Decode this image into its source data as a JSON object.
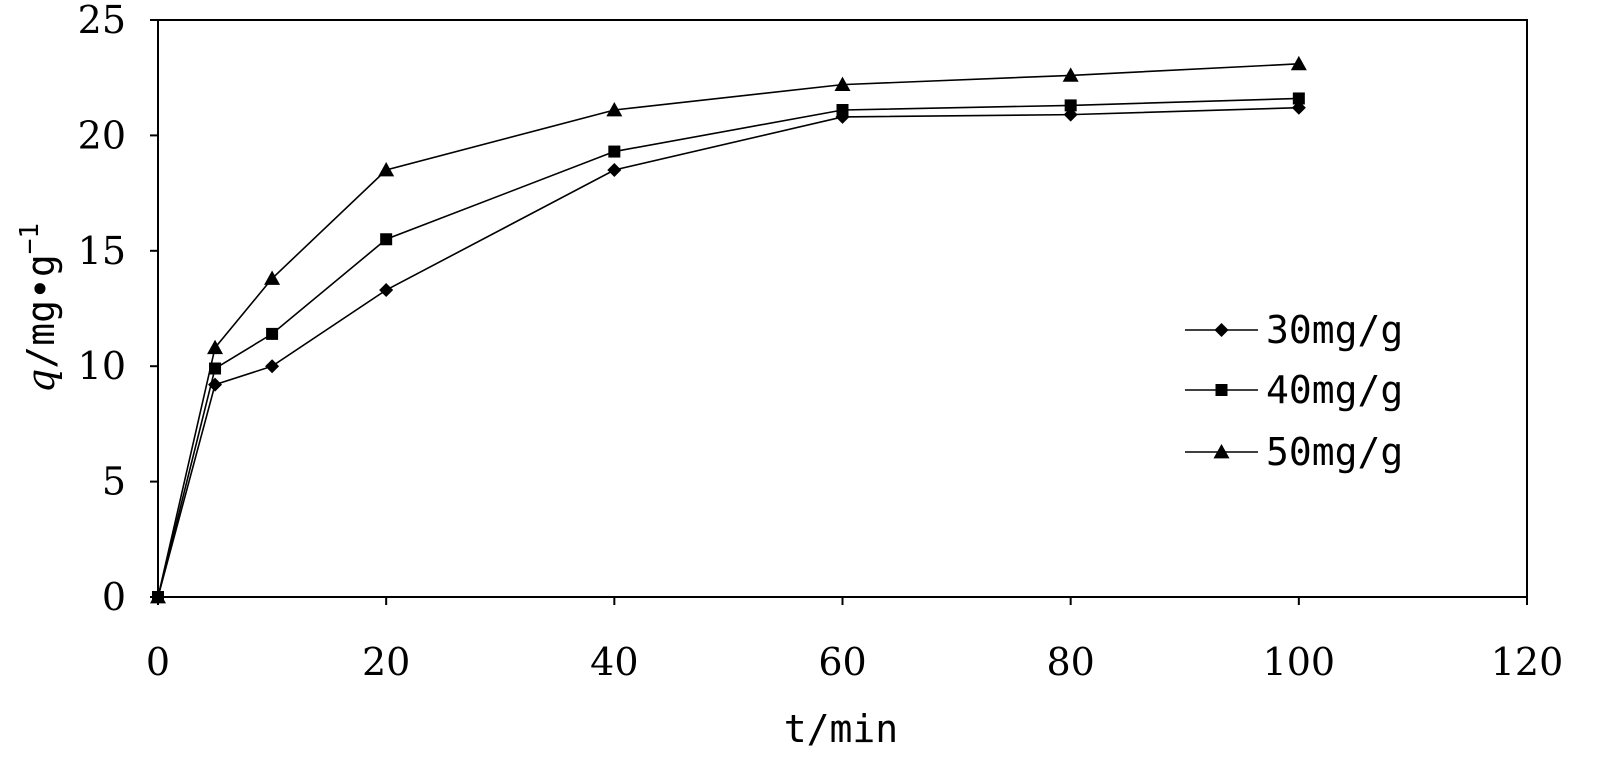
{
  "chart_data": {
    "type": "line",
    "xlabel": "t/min",
    "ylabel_parts": {
      "italic_symbol": "q",
      "unit": "/mg•g",
      "superscript": "−1"
    },
    "xlim": [
      0,
      120
    ],
    "ylim": [
      0,
      25
    ],
    "x_ticks": [
      "0",
      "20",
      "40",
      "60",
      "80",
      "100",
      "120"
    ],
    "y_ticks": [
      "0",
      "5",
      "10",
      "15",
      "20",
      "25"
    ],
    "grid": false,
    "legend_position": "right",
    "x": [
      0,
      5,
      10,
      20,
      40,
      60,
      80,
      100
    ],
    "series": [
      {
        "name": "30mg/g",
        "marker": "diamond",
        "values": [
          0,
          9.2,
          10.0,
          13.3,
          18.5,
          20.8,
          20.9,
          21.2
        ]
      },
      {
        "name": "40mg/g",
        "marker": "square",
        "values": [
          0,
          9.9,
          11.4,
          15.5,
          19.3,
          21.1,
          21.3,
          21.6
        ]
      },
      {
        "name": "50mg/g",
        "marker": "triangle",
        "values": [
          0,
          10.8,
          13.8,
          18.5,
          21.1,
          22.2,
          22.6,
          23.1
        ]
      }
    ]
  }
}
